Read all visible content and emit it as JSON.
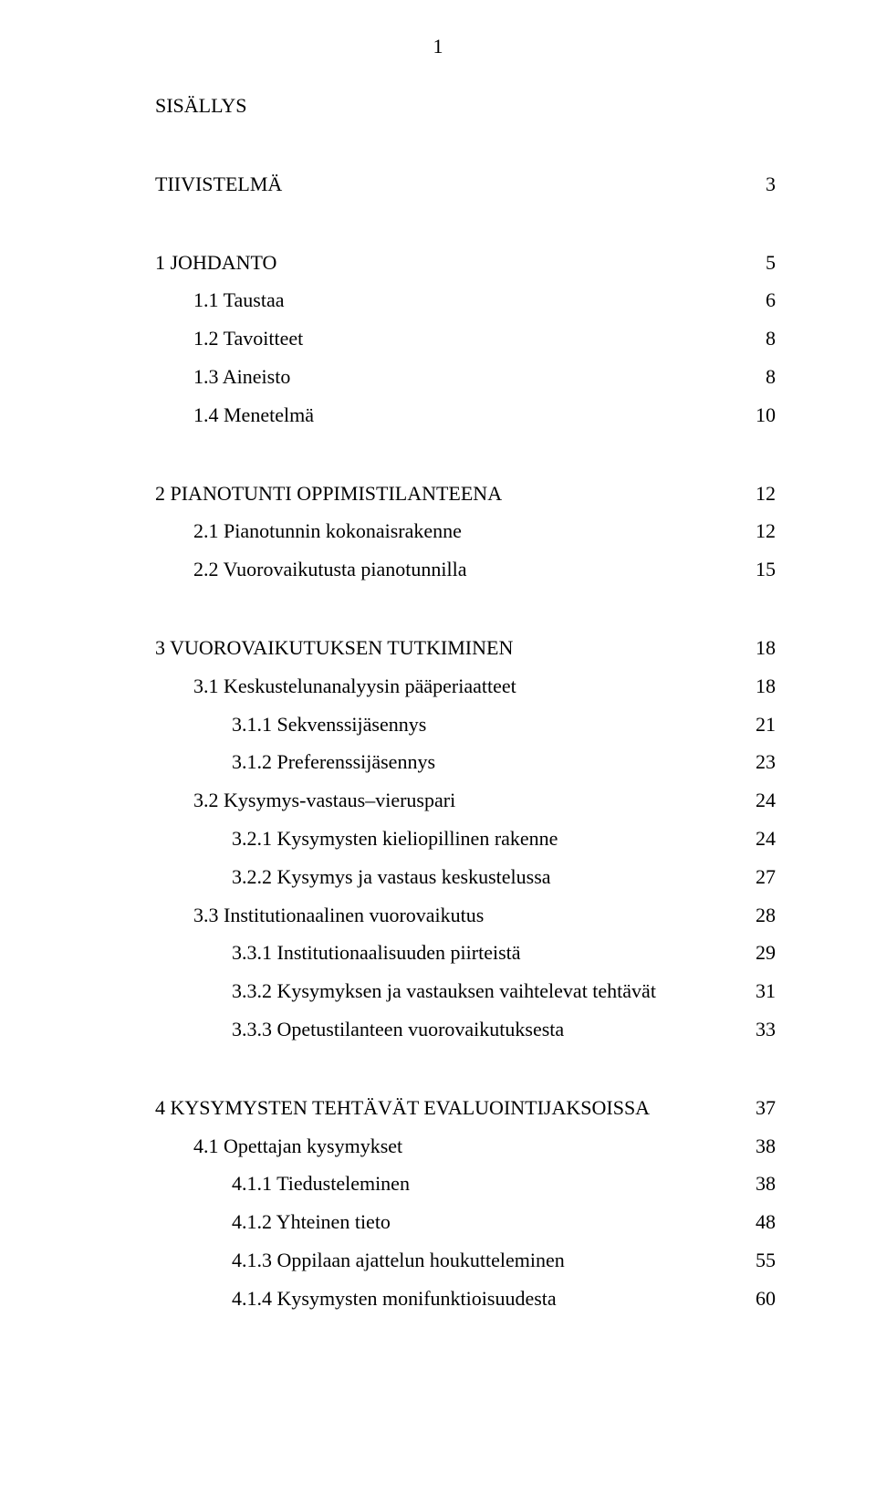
{
  "page_number": "1",
  "font": {
    "family": "Times New Roman",
    "body_size_pt": 16,
    "color": "#000000",
    "background": "#ffffff"
  },
  "toc": [
    {
      "label": "SISÄLLYS",
      "page": "",
      "indent": 0,
      "gap_after": "large"
    },
    {
      "label": "TIIVISTELMÄ",
      "page": "3",
      "indent": 0,
      "gap_after": "large"
    },
    {
      "label": "1 JOHDANTO",
      "page": "5",
      "indent": 0,
      "gap_after": ""
    },
    {
      "label": "1.1 Taustaa",
      "page": "6",
      "indent": 1,
      "gap_after": ""
    },
    {
      "label": "1.2 Tavoitteet",
      "page": "8",
      "indent": 1,
      "gap_after": ""
    },
    {
      "label": "1.3 Aineisto",
      "page": "8",
      "indent": 1,
      "gap_after": ""
    },
    {
      "label": "1.4 Menetelmä",
      "page": "10",
      "indent": 1,
      "gap_after": "large"
    },
    {
      "label": "2 PIANOTUNTI OPPIMISTILANTEENA",
      "page": "12",
      "indent": 0,
      "gap_after": ""
    },
    {
      "label": "2.1 Pianotunnin kokonaisrakenne",
      "page": "12",
      "indent": 1,
      "gap_after": ""
    },
    {
      "label": "2.2 Vuorovaikutusta pianotunnilla",
      "page": "15",
      "indent": 1,
      "gap_after": "large"
    },
    {
      "label": "3 VUOROVAIKUTUKSEN TUTKIMINEN",
      "page": "18",
      "indent": 0,
      "gap_after": ""
    },
    {
      "label": "3.1 Keskustelunanalyysin pääperiaatteet",
      "page": "18",
      "indent": 1,
      "gap_after": ""
    },
    {
      "label": "3.1.1 Sekvenssijäsennys",
      "page": "21",
      "indent": 2,
      "gap_after": ""
    },
    {
      "label": "3.1.2 Preferenssijäsennys",
      "page": "23",
      "indent": 2,
      "gap_after": ""
    },
    {
      "label": "3.2 Kysymys-vastaus–vieruspari",
      "page": "24",
      "indent": 1,
      "gap_after": ""
    },
    {
      "label": "3.2.1 Kysymysten kieliopillinen rakenne",
      "page": "24",
      "indent": 2,
      "gap_after": ""
    },
    {
      "label": "3.2.2 Kysymys ja vastaus keskustelussa",
      "page": "27",
      "indent": 2,
      "gap_after": ""
    },
    {
      "label": "3.3 Institutionaalinen vuorovaikutus",
      "page": "28",
      "indent": 1,
      "gap_after": ""
    },
    {
      "label": "3.3.1 Institutionaalisuuden piirteistä",
      "page": "29",
      "indent": 2,
      "gap_after": ""
    },
    {
      "label": "3.3.2 Kysymyksen ja vastauksen vaihtelevat tehtävät",
      "page": "31",
      "indent": 2,
      "gap_after": ""
    },
    {
      "label": "3.3.3 Opetustilanteen vuorovaikutuksesta",
      "page": "33",
      "indent": 2,
      "gap_after": "large"
    },
    {
      "label": "4 KYSYMYSTEN TEHTÄVÄT EVALUOINTIJAKSOISSA",
      "page": "37",
      "indent": 0,
      "gap_after": ""
    },
    {
      "label": "4.1 Opettajan kysymykset",
      "page": "38",
      "indent": 1,
      "gap_after": ""
    },
    {
      "label": "4.1.1 Tiedusteleminen",
      "page": "38",
      "indent": 2,
      "gap_after": ""
    },
    {
      "label": "4.1.2 Yhteinen tieto",
      "page": "48",
      "indent": 2,
      "gap_after": ""
    },
    {
      "label": "4.1.3 Oppilaan ajattelun houkutteleminen",
      "page": "55",
      "indent": 2,
      "gap_after": ""
    },
    {
      "label": "4.1.4 Kysymysten monifunktioisuudesta",
      "page": "60",
      "indent": 2,
      "gap_after": ""
    }
  ]
}
